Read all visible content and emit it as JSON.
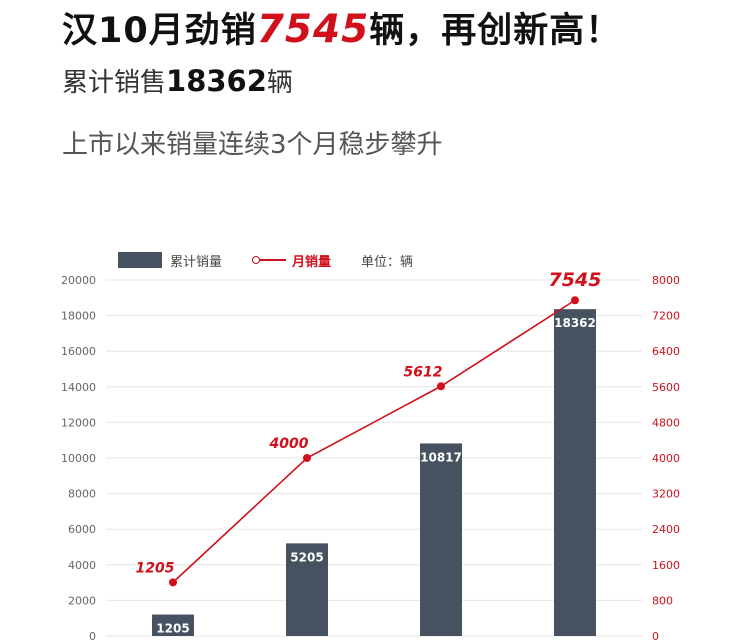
{
  "header": {
    "headline_prefix": "汉10月劲销",
    "headline_number": "7545",
    "headline_suffix": "辆，再创新高！",
    "sub_prefix": "累计销售",
    "sub_number": "18362",
    "sub_suffix": "辆",
    "tagline": "上市以来销量连续3个月稳步攀升"
  },
  "legend": {
    "bar_label": "累计销量",
    "line_label": "月销量",
    "unit_label": "单位：辆"
  },
  "colors": {
    "bar": "#46525f",
    "line": "#d0101b",
    "axis_left_text": "#666666",
    "axis_right_text": "#d0101b",
    "grid": "#e6e6e6"
  },
  "chart_data": {
    "type": "bar",
    "series": [
      {
        "name": "累计销量",
        "type": "bar",
        "axis": "left",
        "values": [
          1205,
          5205,
          10817,
          18362
        ]
      },
      {
        "name": "月销量",
        "type": "line",
        "axis": "right",
        "values": [
          1205,
          4000,
          5612,
          7545
        ]
      }
    ],
    "left_axis": {
      "min": 0,
      "max": 20000,
      "step": 2000
    },
    "right_axis": {
      "min": 0,
      "max": 8000,
      "step": 800
    },
    "grid": true,
    "legend_position": "top-left"
  }
}
